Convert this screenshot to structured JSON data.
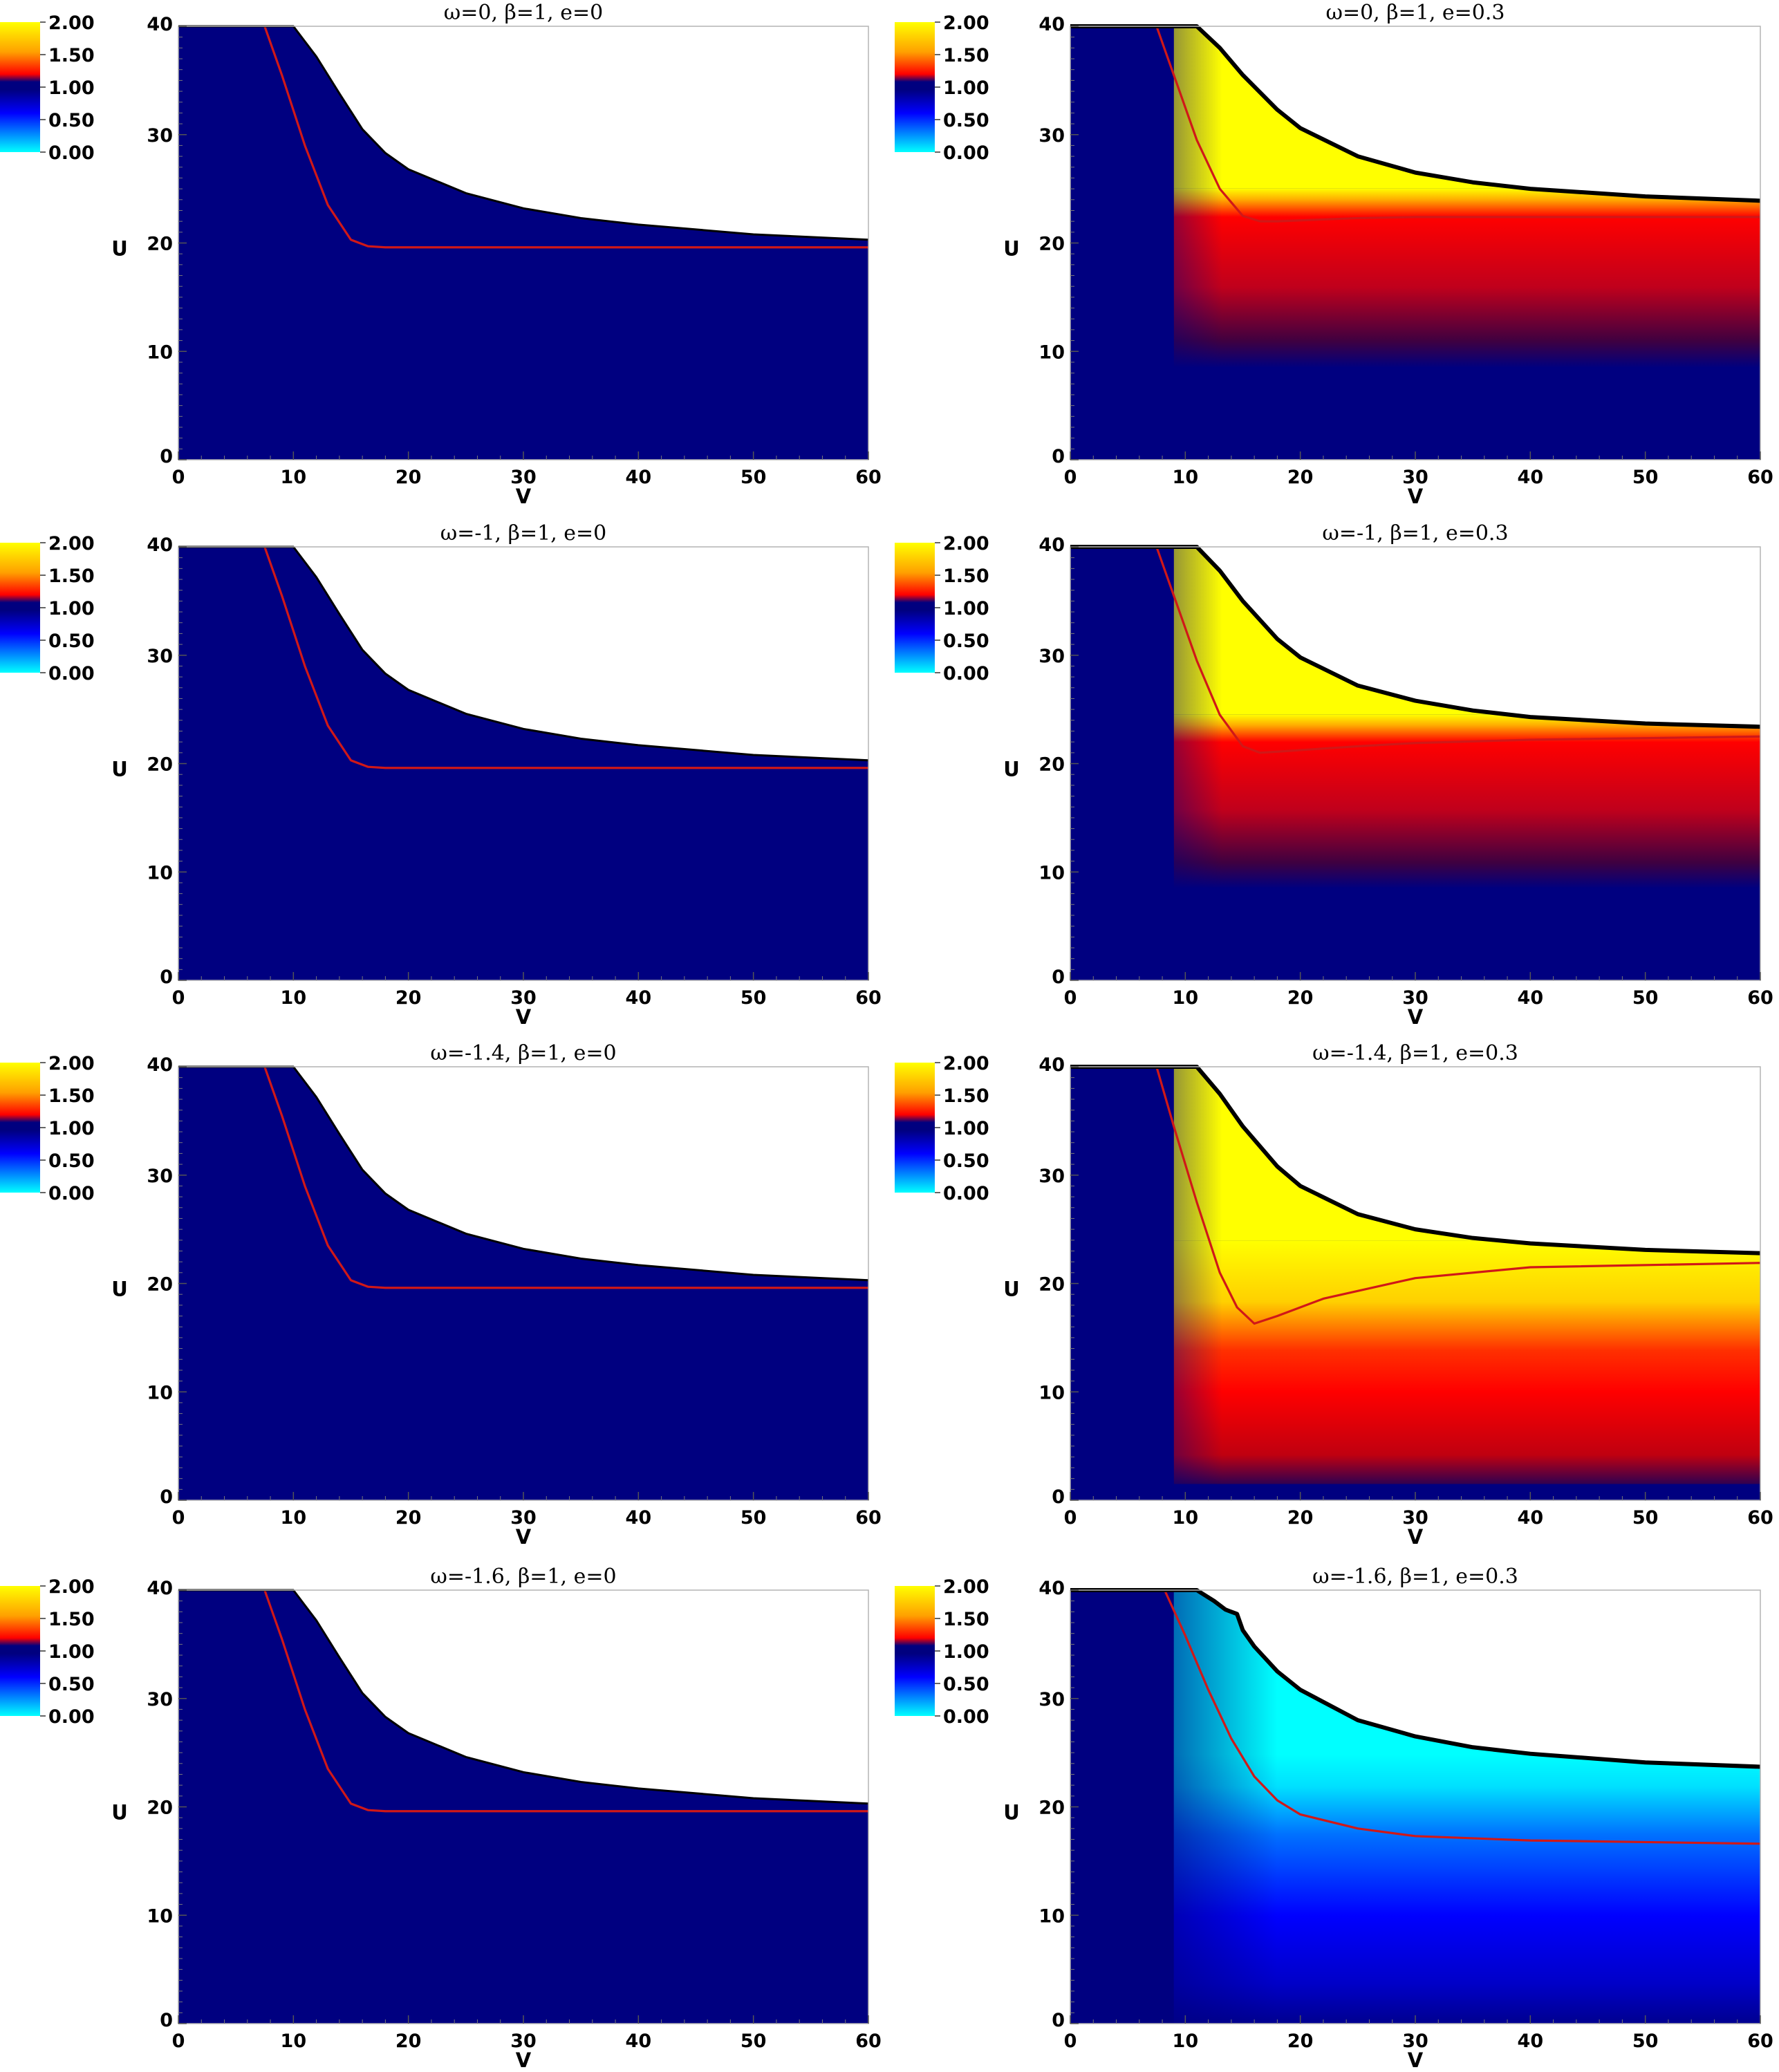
{
  "colors": {
    "background": "#ffffff",
    "field_base": "#000080",
    "horizon_line": "#000000",
    "apparent_horizon": "#d01818",
    "colormap_stops": [
      "#00ffff",
      "#0000ff",
      "#00007f",
      "#ff0000",
      "#ffff00"
    ]
  },
  "colorbar": {
    "ticks": [
      "2.00",
      "1.50",
      "1.00",
      "0.50",
      "0.00"
    ]
  },
  "chart_data": [
    {
      "type": "heatmap",
      "title": "ω=0,   β=1,   e=0",
      "xlabel": "V",
      "ylabel": "U",
      "xlim": [
        0,
        60
      ],
      "ylim": [
        0,
        40
      ],
      "xticks": [
        "0",
        "10",
        "20",
        "30",
        "40",
        "50",
        "60"
      ],
      "yticks": [
        "0",
        "10",
        "20",
        "30",
        "40"
      ],
      "colorbar": {
        "range": [
          0,
          2
        ],
        "ticks": [
          "2.00",
          "1.50",
          "1.00",
          "0.50",
          "0.00"
        ]
      },
      "fill": "uniform",
      "field_value": 1.0,
      "boundary": {
        "v": [
          10,
          12,
          14,
          16,
          18,
          20,
          25,
          30,
          35,
          40,
          50,
          60
        ],
        "u": [
          40,
          37.2,
          33.8,
          30.5,
          28.3,
          26.8,
          24.6,
          23.2,
          22.3,
          21.7,
          20.8,
          20.3
        ]
      },
      "red_curve": {
        "v": [
          7.5,
          9,
          11,
          13,
          15,
          16.5,
          18,
          60
        ],
        "u": [
          40,
          35.5,
          29,
          23.5,
          20.3,
          19.7,
          19.6,
          19.6
        ]
      }
    },
    {
      "type": "heatmap",
      "title": "ω=0,   β=1,   e=0.3",
      "xlabel": "V",
      "ylabel": "U",
      "xlim": [
        0,
        60
      ],
      "ylim": [
        0,
        40
      ],
      "xticks": [
        "0",
        "10",
        "20",
        "30",
        "40",
        "50",
        "60"
      ],
      "yticks": [
        "0",
        "10",
        "20",
        "30",
        "40"
      ],
      "colorbar": {
        "range": [
          0,
          2
        ],
        "ticks": [
          "2.00",
          "1.50",
          "1.00",
          "0.50",
          "0.00"
        ]
      },
      "fill": "warm",
      "field_value_max": 1.95,
      "boundary": {
        "v": [
          11,
          13,
          15,
          18,
          20,
          25,
          30,
          35,
          40,
          50,
          60
        ],
        "u": [
          40,
          38.0,
          35.5,
          32.3,
          30.6,
          28.0,
          26.5,
          25.6,
          25.0,
          24.3,
          23.9
        ]
      },
      "red_curve": {
        "v": [
          7.5,
          9,
          11,
          13,
          15,
          16.5,
          18,
          25,
          30,
          40,
          60
        ],
        "u": [
          40,
          35.5,
          29.5,
          25,
          22.5,
          22.0,
          22.0,
          22.3,
          22.4,
          22.4,
          22.4
        ]
      }
    },
    {
      "type": "heatmap",
      "title": "ω=-1,   β=1,   e=0",
      "xlabel": "V",
      "ylabel": "U",
      "xlim": [
        0,
        60
      ],
      "ylim": [
        0,
        40
      ],
      "xticks": [
        "0",
        "10",
        "20",
        "30",
        "40",
        "50",
        "60"
      ],
      "yticks": [
        "0",
        "10",
        "20",
        "30",
        "40"
      ],
      "colorbar": {
        "range": [
          0,
          2
        ],
        "ticks": [
          "2.00",
          "1.50",
          "1.00",
          "0.50",
          "0.00"
        ]
      },
      "fill": "uniform",
      "field_value": 1.0,
      "boundary": {
        "v": [
          10,
          12,
          14,
          16,
          18,
          20,
          25,
          30,
          35,
          40,
          50,
          60
        ],
        "u": [
          40,
          37.2,
          33.8,
          30.5,
          28.3,
          26.8,
          24.6,
          23.2,
          22.3,
          21.7,
          20.8,
          20.3
        ]
      },
      "red_curve": {
        "v": [
          7.5,
          9,
          11,
          13,
          15,
          16.5,
          18,
          60
        ],
        "u": [
          40,
          35.5,
          29,
          23.5,
          20.3,
          19.7,
          19.6,
          19.6
        ]
      }
    },
    {
      "type": "heatmap",
      "title": "ω=-1,   β=1,   e=0.3",
      "xlabel": "V",
      "ylabel": "U",
      "xlim": [
        0,
        60
      ],
      "ylim": [
        0,
        40
      ],
      "xticks": [
        "0",
        "10",
        "20",
        "30",
        "40",
        "50",
        "60"
      ],
      "yticks": [
        "0",
        "10",
        "20",
        "30",
        "40"
      ],
      "colorbar": {
        "range": [
          0,
          2
        ],
        "ticks": [
          "2.00",
          "1.50",
          "1.00",
          "0.50",
          "0.00"
        ]
      },
      "fill": "warm",
      "field_value_max": 2.0,
      "boundary": {
        "v": [
          11,
          13,
          15,
          18,
          20,
          25,
          30,
          35,
          40,
          50,
          60
        ],
        "u": [
          40,
          37.8,
          35.0,
          31.5,
          29.8,
          27.2,
          25.8,
          24.9,
          24.3,
          23.7,
          23.4
        ]
      },
      "red_curve": {
        "v": [
          7.5,
          9,
          11,
          13,
          15,
          16.5,
          18,
          25,
          30,
          40,
          60
        ],
        "u": [
          40,
          35.5,
          29.5,
          24.5,
          21.6,
          21.0,
          21.1,
          21.6,
          21.9,
          22.2,
          22.5
        ]
      }
    },
    {
      "type": "heatmap",
      "title": "ω=-1.4,   β=1,   e=0",
      "xlabel": "V",
      "ylabel": "U",
      "xlim": [
        0,
        60
      ],
      "ylim": [
        0,
        40
      ],
      "xticks": [
        "0",
        "10",
        "20",
        "30",
        "40",
        "50",
        "60"
      ],
      "yticks": [
        "0",
        "10",
        "20",
        "30",
        "40"
      ],
      "colorbar": {
        "range": [
          0,
          2
        ],
        "ticks": [
          "2.00",
          "1.50",
          "1.00",
          "0.50",
          "0.00"
        ]
      },
      "fill": "uniform",
      "field_value": 1.0,
      "boundary": {
        "v": [
          10,
          12,
          14,
          16,
          18,
          20,
          25,
          30,
          35,
          40,
          50,
          60
        ],
        "u": [
          40,
          37.2,
          33.8,
          30.5,
          28.3,
          26.8,
          24.6,
          23.2,
          22.3,
          21.7,
          20.8,
          20.3
        ]
      },
      "red_curve": {
        "v": [
          7.5,
          9,
          11,
          13,
          15,
          16.5,
          18,
          60
        ],
        "u": [
          40,
          35.5,
          29,
          23.5,
          20.3,
          19.7,
          19.6,
          19.6
        ]
      }
    },
    {
      "type": "heatmap",
      "title": "ω=-1.4,   β=1,   e=0.3",
      "xlabel": "V",
      "ylabel": "U",
      "xlim": [
        0,
        60
      ],
      "ylim": [
        0,
        40
      ],
      "xticks": [
        "0",
        "10",
        "20",
        "30",
        "40",
        "50",
        "60"
      ],
      "yticks": [
        "0",
        "10",
        "20",
        "30",
        "40"
      ],
      "colorbar": {
        "range": [
          0,
          2
        ],
        "ticks": [
          "2.00",
          "1.50",
          "1.00",
          "0.50",
          "0.00"
        ]
      },
      "fill": "hot",
      "field_value_max": 2.0,
      "boundary": {
        "v": [
          11,
          13,
          15,
          18,
          20,
          25,
          30,
          35,
          40,
          50,
          60
        ],
        "u": [
          40,
          37.5,
          34.5,
          30.8,
          29.0,
          26.4,
          25.0,
          24.2,
          23.7,
          23.1,
          22.8
        ]
      },
      "red_curve": {
        "v": [
          7.5,
          9,
          11,
          13,
          14.5,
          16,
          18,
          22,
          30,
          40,
          60
        ],
        "u": [
          40,
          34.5,
          27.5,
          21.0,
          17.8,
          16.3,
          17.0,
          18.6,
          20.5,
          21.5,
          21.9
        ]
      }
    },
    {
      "type": "heatmap",
      "title": "ω=-1.6,   β=1,   e=0",
      "xlabel": "V",
      "ylabel": "U",
      "xlim": [
        0,
        60
      ],
      "ylim": [
        0,
        40
      ],
      "xticks": [
        "0",
        "10",
        "20",
        "30",
        "40",
        "50",
        "60"
      ],
      "yticks": [
        "0",
        "10",
        "20",
        "30",
        "40"
      ],
      "colorbar": {
        "range": [
          0,
          2
        ],
        "ticks": [
          "2.00",
          "1.50",
          "1.00",
          "0.50",
          "0.00"
        ]
      },
      "fill": "uniform",
      "field_value": 1.0,
      "boundary": {
        "v": [
          10,
          12,
          14,
          16,
          18,
          20,
          25,
          30,
          35,
          40,
          50,
          60
        ],
        "u": [
          40,
          37.2,
          33.8,
          30.5,
          28.3,
          26.8,
          24.6,
          23.2,
          22.3,
          21.7,
          20.8,
          20.3
        ]
      },
      "red_curve": {
        "v": [
          7.5,
          9,
          11,
          13,
          15,
          16.5,
          18,
          60
        ],
        "u": [
          40,
          35.5,
          29,
          23.5,
          20.3,
          19.7,
          19.6,
          19.6
        ]
      }
    },
    {
      "type": "heatmap",
      "title": "ω=-1.6,   β=1,   e=0.3",
      "xlabel": "V",
      "ylabel": "U",
      "xlim": [
        0,
        60
      ],
      "ylim": [
        0,
        40
      ],
      "xticks": [
        "0",
        "10",
        "20",
        "30",
        "40",
        "50",
        "60"
      ],
      "yticks": [
        "0",
        "10",
        "20",
        "30",
        "40"
      ],
      "colorbar": {
        "range": [
          0,
          2
        ],
        "ticks": [
          "2.00",
          "1.50",
          "1.00",
          "0.50",
          "0.00"
        ]
      },
      "fill": "cold",
      "field_value_min": 0.0,
      "boundary": {
        "v": [
          11,
          12.5,
          13.5,
          14.5,
          15,
          16,
          18,
          20,
          25,
          30,
          35,
          40,
          50,
          60
        ],
        "u": [
          40,
          39.0,
          38.2,
          37.8,
          36.3,
          34.8,
          32.5,
          30.8,
          28.0,
          26.5,
          25.5,
          24.9,
          24.1,
          23.7
        ]
      },
      "red_curve": {
        "v": [
          8.2,
          10,
          12,
          14,
          16,
          18,
          20,
          25,
          30,
          40,
          60
        ],
        "u": [
          40,
          35.8,
          30.8,
          26.3,
          22.8,
          20.6,
          19.3,
          18.0,
          17.3,
          16.9,
          16.6
        ]
      }
    }
  ]
}
